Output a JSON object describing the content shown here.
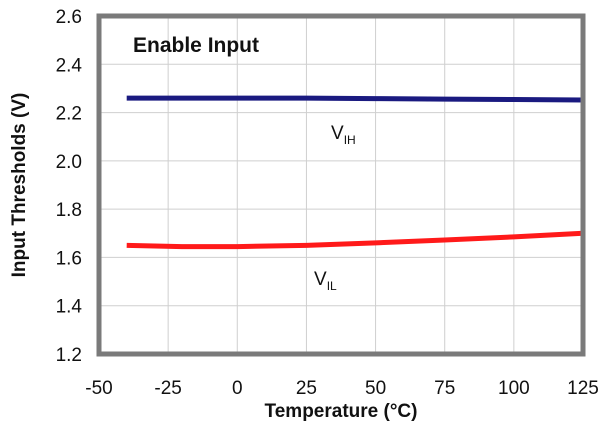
{
  "chart_data": {
    "type": "line",
    "title": "Enable Input",
    "xlabel": "Temperature (°C)",
    "ylabel": "Input Thresholds (V)",
    "xlim": [
      -50,
      125
    ],
    "ylim": [
      1.2,
      2.6
    ],
    "x_ticks": [
      -50,
      -25,
      0,
      25,
      50,
      75,
      100,
      125
    ],
    "y_ticks": [
      1.2,
      1.4,
      1.6,
      1.8,
      2.0,
      2.2,
      2.4,
      2.6
    ],
    "y_tick_labels": [
      "1.2",
      "1.4",
      "1.6",
      "1.8",
      "2.0",
      "2.2",
      "2.4",
      "2.6"
    ],
    "grid": true,
    "series": [
      {
        "label_main": "V",
        "label_sub": "IH",
        "color": "#1a1a80",
        "x": [
          -40,
          -20,
          0,
          25,
          50,
          75,
          100,
          125
        ],
        "y": [
          2.26,
          2.26,
          2.26,
          2.26,
          2.258,
          2.256,
          2.254,
          2.252
        ]
      },
      {
        "label_main": "V",
        "label_sub": "IL",
        "color": "#ff1a1a",
        "x": [
          -40,
          -20,
          0,
          25,
          50,
          75,
          100,
          125
        ],
        "y": [
          1.65,
          1.645,
          1.645,
          1.65,
          1.66,
          1.672,
          1.685,
          1.7
        ]
      }
    ]
  }
}
